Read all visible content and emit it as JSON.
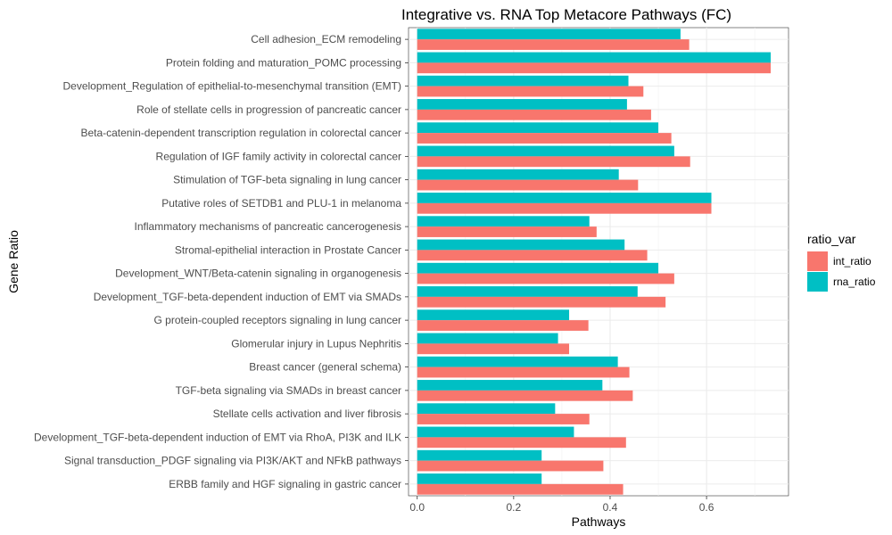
{
  "chart_data": {
    "type": "bar",
    "orientation": "horizontal",
    "title": "Integrative vs. RNA Top Metacore Pathways (FC)",
    "xlabel": "Pathways",
    "ylabel": "Gene Ratio",
    "xlim": [
      -0.018,
      0.77
    ],
    "xticks": [
      0.0,
      0.2,
      0.4,
      0.6
    ],
    "xtick_labels": [
      "0.0",
      "0.2",
      "0.4",
      "0.6"
    ],
    "grid": true,
    "legend": {
      "title": "ratio_var",
      "position": "right"
    },
    "categories": [
      "Cell adhesion_ECM remodeling",
      "Protein folding and maturation_POMC processing",
      "Development_Regulation of epithelial-to-mesenchymal transition (EMT)",
      "Role of stellate cells in progression of pancreatic cancer",
      "Beta-catenin-dependent transcription regulation in colorectal cancer",
      "Regulation of IGF family activity in colorectal cancer",
      "Stimulation of TGF-beta signaling in lung cancer",
      "Putative roles of SETDB1 and PLU-1 in melanoma",
      "Inflammatory mechanisms of pancreatic cancerogenesis",
      "Stromal-epithelial interaction in Prostate Cancer",
      "Development_WNT/Beta-catenin signaling in organogenesis",
      "Development_TGF-beta-dependent induction of EMT via SMADs ",
      "G protein-coupled receptors signaling in lung cancer",
      "Glomerular injury in Lupus Nephritis",
      "Breast cancer (general schema)",
      "TGF-beta signaling via SMADs in breast cancer",
      "Stellate cells activation and liver fibrosis",
      "Development_TGF-beta-dependent induction of EMT via RhoA,  PI3K and ILK",
      "Signal transduction_PDGF signaling via PI3K/AKT and NFkB pathways",
      "ERBB family and HGF signaling in gastric cancer"
    ],
    "series": [
      {
        "name": "int_ratio",
        "color": "#F8766D",
        "values": [
          0.564,
          0.733,
          0.469,
          0.485,
          0.527,
          0.566,
          0.458,
          0.61,
          0.372,
          0.477,
          0.533,
          0.515,
          0.355,
          0.315,
          0.44,
          0.447,
          0.357,
          0.433,
          0.386,
          0.427
        ]
      },
      {
        "name": "rna_ratio",
        "color": "#00BFC4",
        "values": [
          0.546,
          0.733,
          0.438,
          0.435,
          0.5,
          0.533,
          0.418,
          0.61,
          0.357,
          0.43,
          0.5,
          0.457,
          0.315,
          0.292,
          0.416,
          0.384,
          0.286,
          0.325,
          0.258,
          0.258
        ]
      }
    ]
  }
}
